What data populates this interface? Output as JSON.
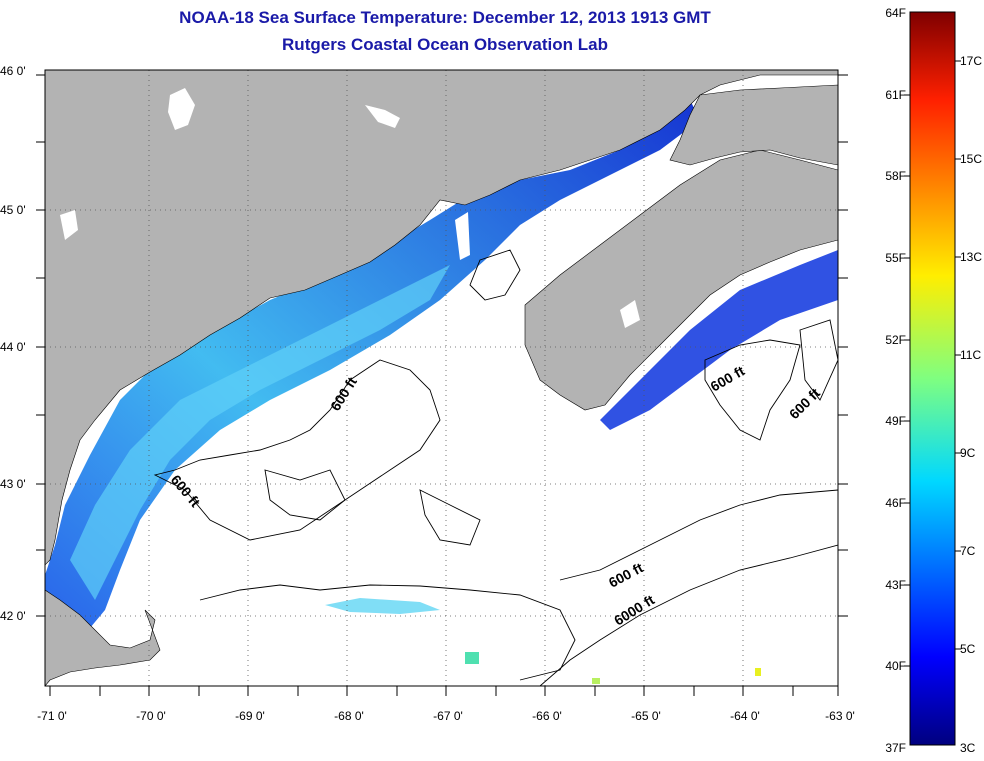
{
  "title": "NOAA-18 Sea Surface Temperature:  December 12, 2013 1913 GMT",
  "subtitle": "Rutgers Coastal Ocean Observation Lab",
  "lat_labels": [
    "46 0'",
    "45 0'",
    "44 0'",
    "43 0'",
    "42 0'"
  ],
  "lon_labels": [
    "-71 0'",
    "-70 0'",
    "-69 0'",
    "-68 0'",
    "-67 0'",
    "-66 0'",
    "-65 0'",
    "-64 0'",
    "-63 0'"
  ],
  "contour_labels": [
    "600 ft",
    "600 ft",
    "600 ft",
    "600 ft",
    "600 ft",
    "6000 ft"
  ],
  "colorbar": {
    "fahrenheit": [
      "64F",
      "61F",
      "58F",
      "55F",
      "52F",
      "49F",
      "46F",
      "43F",
      "40F",
      "37F"
    ],
    "celsius": [
      "17C",
      "15C",
      "13C",
      "11C",
      "9C",
      "7C",
      "5C",
      "3C"
    ]
  },
  "colors": {
    "land": "#b3b3b3",
    "title": "#1a1aa8",
    "cold": "#00008f",
    "warm": "#7f0000"
  }
}
